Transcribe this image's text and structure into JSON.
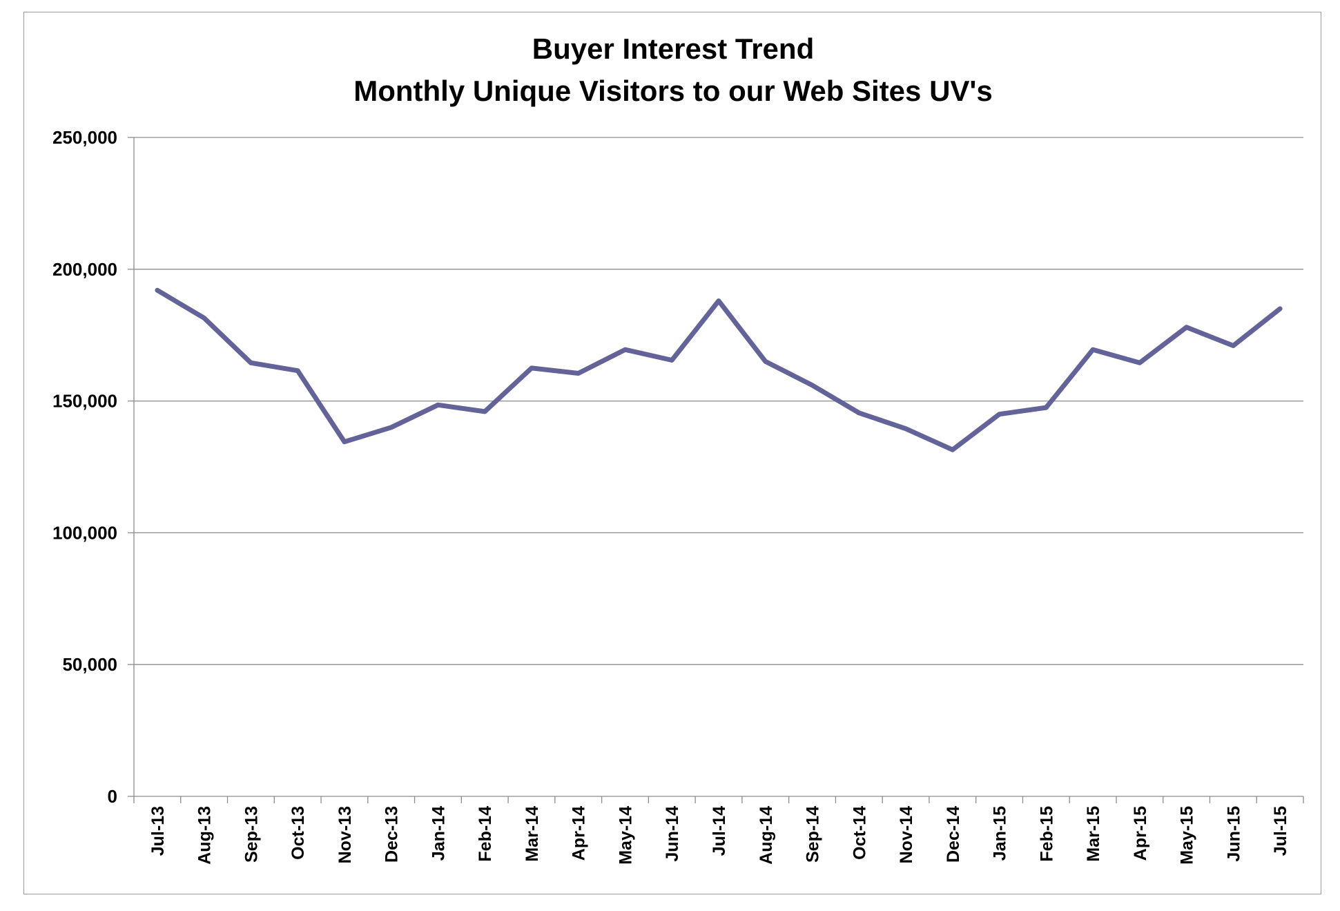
{
  "chart_data": {
    "type": "line",
    "title": "Buyer Interest Trend",
    "subtitle": "Monthly Unique Visitors to our Web Sites UV's",
    "xlabel": "",
    "ylabel": "",
    "categories": [
      "Jul-13",
      "Aug-13",
      "Sep-13",
      "Oct-13",
      "Nov-13",
      "Dec-13",
      "Jan-14",
      "Feb-14",
      "Mar-14",
      "Apr-14",
      "May-14",
      "Jun-14",
      "Jul-14",
      "Aug-14",
      "Sep-14",
      "Oct-14",
      "Nov-14",
      "Dec-14",
      "Jan-15",
      "Feb-15",
      "Mar-15",
      "Apr-15",
      "May-15",
      "Jun-15",
      "Jul-15"
    ],
    "series": [
      {
        "values": [
          192000,
          181500,
          164500,
          161500,
          134500,
          140000,
          148500,
          146000,
          162500,
          160500,
          169500,
          165500,
          188000,
          165000,
          156000,
          145500,
          139500,
          131500,
          145000,
          147500,
          169500,
          164500,
          178000,
          171000,
          185000
        ]
      }
    ],
    "yticks": [
      "0",
      "50,000",
      "100,000",
      "150,000",
      "200,000",
      "250,000"
    ],
    "ylim": [
      0,
      250000
    ],
    "ytick_step": 50000,
    "grid": true,
    "legend": "none",
    "line_color": "#63639a",
    "grid_color": "#8c8c8c",
    "axis_color": "#8c8c8c"
  }
}
